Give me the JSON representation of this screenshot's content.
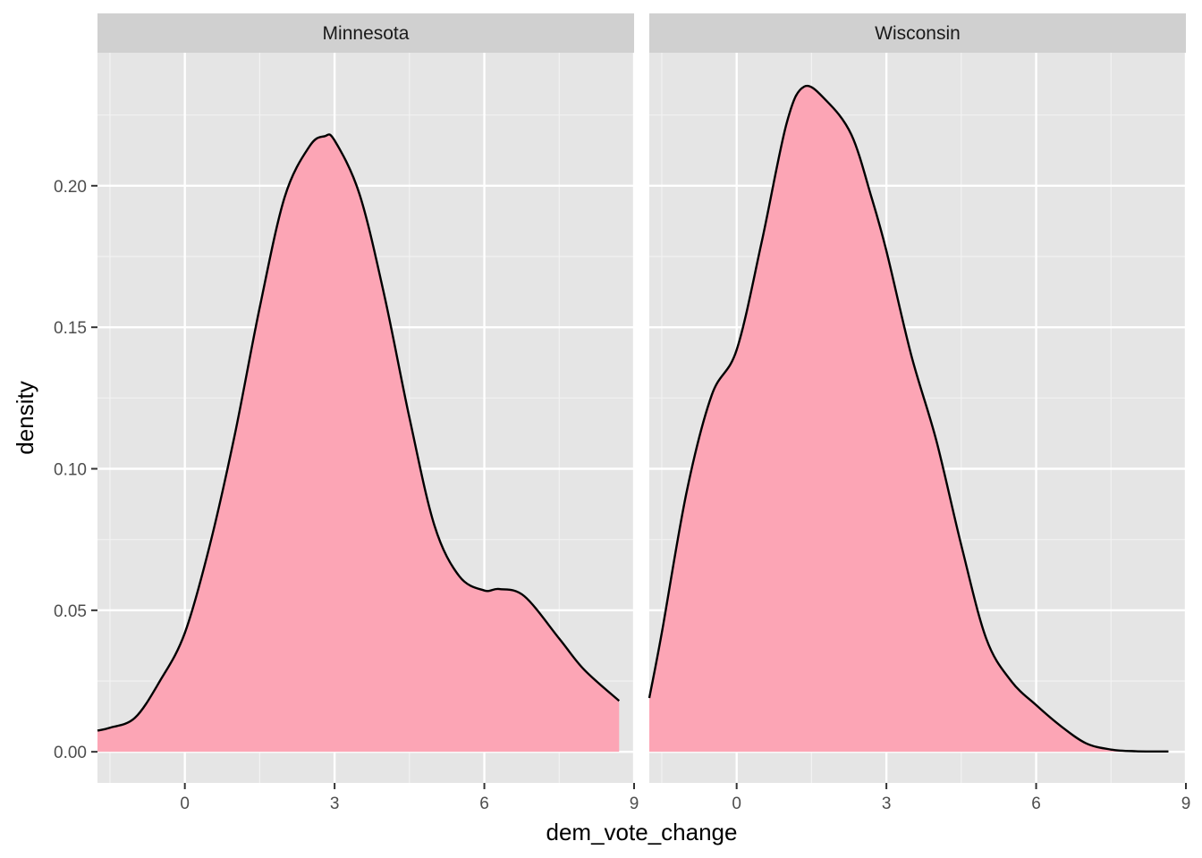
{
  "chart_data": {
    "type": "area",
    "xlabel": "dem_vote_change",
    "ylabel": "density",
    "xlim": [
      -1.75,
      9.0
    ],
    "ylim": [
      -0.011,
      0.247
    ],
    "x_major_ticks": [
      0,
      3,
      6,
      9
    ],
    "x_tick_labels": [
      "0",
      "3",
      "6",
      "9"
    ],
    "y_major_ticks": [
      0.0,
      0.05,
      0.1,
      0.15,
      0.2
    ],
    "y_tick_labels": [
      "0.00",
      "0.05",
      "0.10",
      "0.15",
      "0.20"
    ],
    "grid": true,
    "fill_color": "#fca5b5",
    "line_color": "#000000",
    "panel_background": "#e5e5e5",
    "strip_background": "#d0d0d0",
    "facets": [
      {
        "name": "Minnesota",
        "x": [
          -1.75,
          -1.5,
          -1.0,
          -0.5,
          0.0,
          0.5,
          1.0,
          1.5,
          2.0,
          2.5,
          2.8,
          3.0,
          3.5,
          4.0,
          4.5,
          5.0,
          5.5,
          6.0,
          6.3,
          6.8,
          7.5,
          8.0,
          8.7
        ],
        "y": [
          0.0075,
          0.0085,
          0.012,
          0.025,
          0.042,
          0.073,
          0.112,
          0.157,
          0.196,
          0.214,
          0.2175,
          0.216,
          0.197,
          0.161,
          0.118,
          0.08,
          0.062,
          0.057,
          0.0575,
          0.055,
          0.04,
          0.029,
          0.018
        ]
      },
      {
        "name": "Wisconsin",
        "x": [
          -1.75,
          -1.5,
          -1.0,
          -0.5,
          0.0,
          0.5,
          1.0,
          1.35,
          1.8,
          2.3,
          2.7,
          3.0,
          3.5,
          4.0,
          4.5,
          5.0,
          5.5,
          6.0,
          6.5,
          7.0,
          7.5,
          8.0,
          8.65
        ],
        "y": [
          0.019,
          0.042,
          0.092,
          0.126,
          0.142,
          0.18,
          0.222,
          0.235,
          0.23,
          0.218,
          0.196,
          0.177,
          0.14,
          0.11,
          0.073,
          0.04,
          0.025,
          0.0165,
          0.009,
          0.003,
          0.0008,
          0.0002,
          0.0001
        ]
      }
    ]
  }
}
